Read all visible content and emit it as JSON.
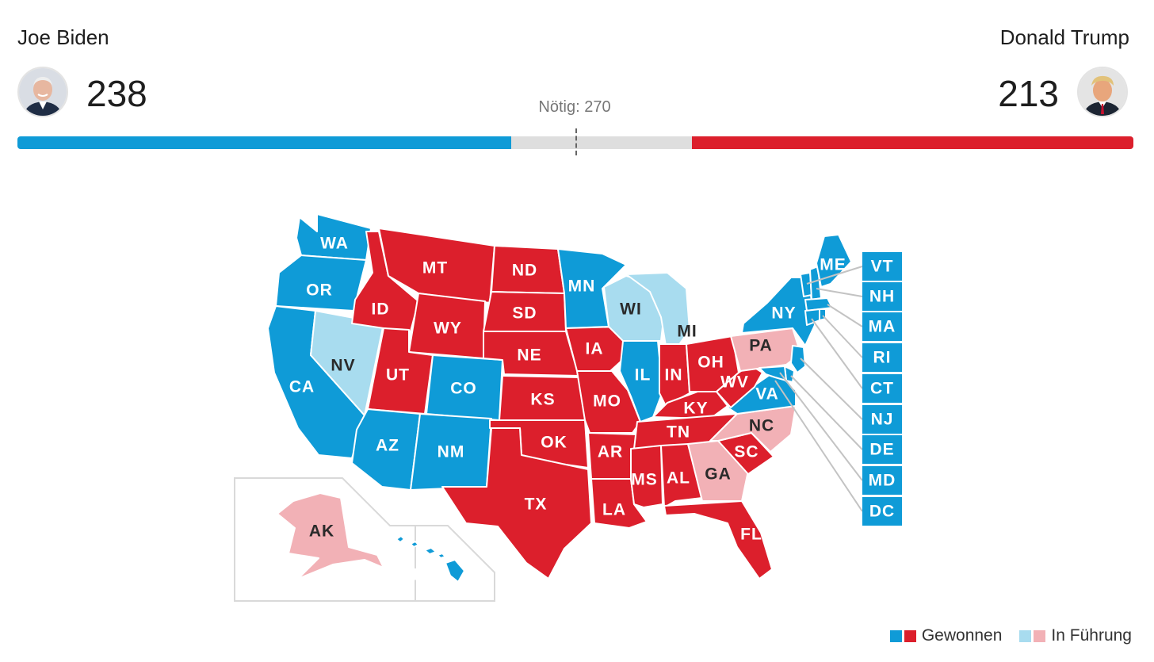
{
  "header": {
    "left": {
      "name": "Joe Biden",
      "votes": "238"
    },
    "right": {
      "name": "Donald Trump",
      "votes": "213"
    },
    "needed": "Nötig: 270"
  },
  "tally": {
    "dem": 238,
    "rep": 213,
    "total": 538,
    "needed": 270
  },
  "colors": {
    "dem_won": "#0f9bd7",
    "dem_lead": "#a8dcef",
    "rep_won": "#dc1f2c",
    "rep_lead": "#f2b1b6",
    "border": "#ffffff",
    "callout_line": "#c3c3c3",
    "inset_border": "#d9d9d9"
  },
  "legend": {
    "won": "Gewonnen",
    "leading": "In Führung"
  },
  "states": [
    {
      "code": "WA",
      "status": "dem_won"
    },
    {
      "code": "OR",
      "status": "dem_won"
    },
    {
      "code": "CA",
      "status": "dem_won"
    },
    {
      "code": "NV",
      "status": "dem_lead"
    },
    {
      "code": "ID",
      "status": "rep_won"
    },
    {
      "code": "MT",
      "status": "rep_won"
    },
    {
      "code": "WY",
      "status": "rep_won"
    },
    {
      "code": "UT",
      "status": "rep_won"
    },
    {
      "code": "CO",
      "status": "dem_won"
    },
    {
      "code": "AZ",
      "status": "dem_won"
    },
    {
      "code": "NM",
      "status": "dem_won"
    },
    {
      "code": "ND",
      "status": "rep_won"
    },
    {
      "code": "SD",
      "status": "rep_won"
    },
    {
      "code": "NE",
      "status": "rep_won"
    },
    {
      "code": "KS",
      "status": "rep_won"
    },
    {
      "code": "OK",
      "status": "rep_won"
    },
    {
      "code": "TX",
      "status": "rep_won"
    },
    {
      "code": "MN",
      "status": "dem_won"
    },
    {
      "code": "IA",
      "status": "rep_won"
    },
    {
      "code": "MO",
      "status": "rep_won"
    },
    {
      "code": "AR",
      "status": "rep_won"
    },
    {
      "code": "LA",
      "status": "rep_won"
    },
    {
      "code": "WI",
      "status": "dem_lead"
    },
    {
      "code": "IL",
      "status": "dem_won"
    },
    {
      "code": "MI",
      "status": "dem_lead"
    },
    {
      "code": "IN",
      "status": "rep_won"
    },
    {
      "code": "OH",
      "status": "rep_won"
    },
    {
      "code": "KY",
      "status": "rep_won"
    },
    {
      "code": "TN",
      "status": "rep_won"
    },
    {
      "code": "MS",
      "status": "rep_won"
    },
    {
      "code": "AL",
      "status": "rep_won"
    },
    {
      "code": "GA",
      "status": "rep_lead"
    },
    {
      "code": "FL",
      "status": "rep_won"
    },
    {
      "code": "SC",
      "status": "rep_won"
    },
    {
      "code": "NC",
      "status": "rep_lead"
    },
    {
      "code": "VA",
      "status": "dem_won"
    },
    {
      "code": "WV",
      "status": "rep_won"
    },
    {
      "code": "PA",
      "status": "rep_lead"
    },
    {
      "code": "NY",
      "status": "dem_won"
    },
    {
      "code": "ME",
      "status": "dem_won"
    },
    {
      "code": "AK",
      "status": "rep_lead"
    },
    {
      "code": "HI",
      "status": "dem_won"
    }
  ],
  "small_states": [
    {
      "code": "VT",
      "status": "dem_won"
    },
    {
      "code": "NH",
      "status": "dem_won"
    },
    {
      "code": "MA",
      "status": "dem_won"
    },
    {
      "code": "RI",
      "status": "dem_won"
    },
    {
      "code": "CT",
      "status": "dem_won"
    },
    {
      "code": "NJ",
      "status": "dem_won"
    },
    {
      "code": "DE",
      "status": "dem_won"
    },
    {
      "code": "MD",
      "status": "dem_won"
    },
    {
      "code": "DC",
      "status": "dem_won"
    }
  ]
}
